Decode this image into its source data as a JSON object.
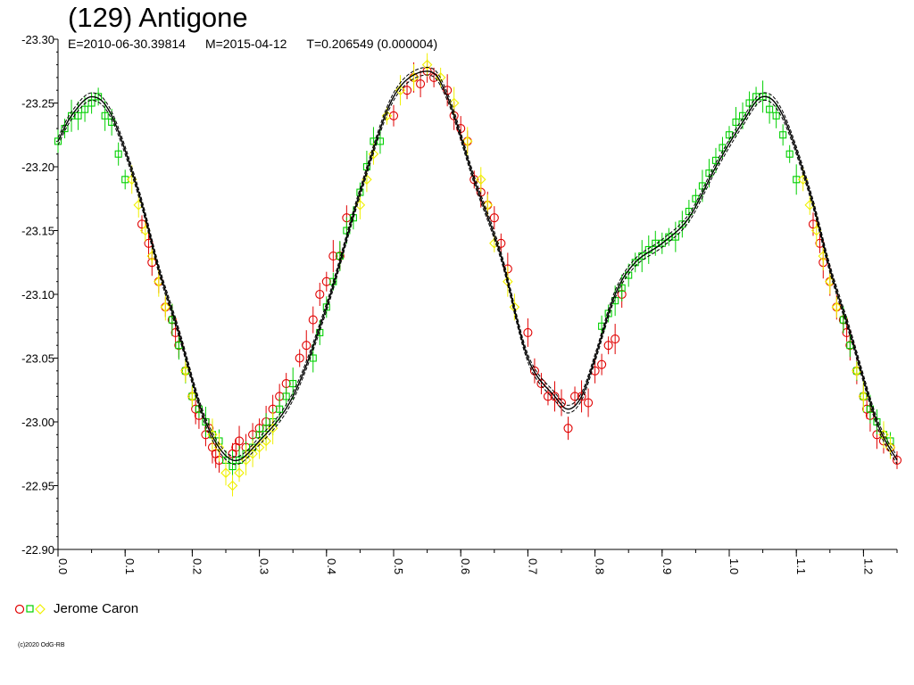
{
  "title": "(129) Antigone",
  "subtitle": {
    "epoch": "E=2010-06-30.39814",
    "date": "M=2015-04-12",
    "period": "T=0.206549 (0.000004)"
  },
  "legend": {
    "label": "Jerome Caron"
  },
  "copyright": "(c)2020 OdG-RB",
  "colors": {
    "red": "#e00000",
    "green": "#00d000",
    "yellow": "#f0f000",
    "curve": "#000000"
  },
  "chart_data": {
    "type": "scatter",
    "xlabel": "",
    "ylabel": "",
    "xlim": [
      0.0,
      1.25
    ],
    "ylim": [
      -22.9,
      -23.3
    ],
    "y_inverted": true,
    "xticks": [
      "0.0",
      "0.1",
      "0.2",
      "0.3",
      "0.4",
      "0.5",
      "0.6",
      "0.7",
      "0.8",
      "0.9",
      "1.0",
      "1.1",
      "1.2"
    ],
    "yticks": [
      "-23.30",
      "-23.25",
      "-23.20",
      "-23.15",
      "-23.10",
      "-23.05",
      "-23.00",
      "-22.95",
      "-22.90"
    ],
    "model_curve": {
      "x": [
        0.0,
        0.02,
        0.05,
        0.08,
        0.12,
        0.15,
        0.18,
        0.22,
        0.26,
        0.3,
        0.35,
        0.4,
        0.45,
        0.5,
        0.55,
        0.58,
        0.62,
        0.66,
        0.7,
        0.74,
        0.76,
        0.78,
        0.8,
        0.83,
        0.86,
        0.9,
        0.94,
        0.98,
        1.02,
        1.05,
        1.08,
        1.12,
        1.15,
        1.18,
        1.22,
        1.25
      ],
      "y": [
        -23.22,
        -23.24,
        -23.255,
        -23.24,
        -23.18,
        -23.12,
        -23.07,
        -23.0,
        -22.97,
        -22.985,
        -23.02,
        -23.09,
        -23.18,
        -23.255,
        -23.275,
        -23.255,
        -23.19,
        -23.13,
        -23.05,
        -23.02,
        -23.01,
        -23.02,
        -23.05,
        -23.1,
        -23.125,
        -23.14,
        -23.16,
        -23.2,
        -23.235,
        -23.255,
        -23.24,
        -23.18,
        -23.12,
        -23.07,
        -23.0,
        -22.97
      ]
    },
    "series": [
      {
        "marker": "circle",
        "color": "red",
        "x": [
          0.125,
          0.135,
          0.14,
          0.15,
          0.16,
          0.17,
          0.175,
          0.18,
          0.19,
          0.2,
          0.205,
          0.21,
          0.22,
          0.225,
          0.23,
          0.235,
          0.24,
          0.26,
          0.265,
          0.27,
          0.28,
          0.29,
          0.3,
          0.31,
          0.32,
          0.33,
          0.34,
          0.36,
          0.37,
          0.38,
          0.39,
          0.4,
          0.41,
          0.42,
          0.43,
          0.5,
          0.52,
          0.53,
          0.54,
          0.55,
          0.56,
          0.58,
          0.59,
          0.6,
          0.61,
          0.62,
          0.63,
          0.64,
          0.65,
          0.66,
          0.67,
          0.7,
          0.71,
          0.72,
          0.73,
          0.74,
          0.75,
          0.76,
          0.77,
          0.78,
          0.79,
          0.8,
          0.81,
          0.82,
          0.83,
          0.84,
          1.125,
          1.135,
          1.14,
          1.15,
          1.16,
          1.17,
          1.175,
          1.18,
          1.19,
          1.2,
          1.205,
          1.21,
          1.22,
          1.23,
          1.24,
          1.25
        ],
        "y": [
          -23.155,
          -23.14,
          -23.125,
          -23.11,
          -23.09,
          -23.08,
          -23.07,
          -23.06,
          -23.04,
          -23.02,
          -23.01,
          -23.005,
          -22.99,
          -22.995,
          -22.98,
          -22.975,
          -22.97,
          -22.975,
          -22.98,
          -22.985,
          -22.98,
          -22.99,
          -22.995,
          -23.0,
          -23.01,
          -23.02,
          -23.03,
          -23.05,
          -23.06,
          -23.08,
          -23.1,
          -23.11,
          -23.13,
          -23.13,
          -23.16,
          -23.24,
          -23.26,
          -23.27,
          -23.265,
          -23.275,
          -23.27,
          -23.26,
          -23.24,
          -23.23,
          -23.22,
          -23.19,
          -23.18,
          -23.17,
          -23.16,
          -23.14,
          -23.12,
          -23.07,
          -23.04,
          -23.03,
          -23.02,
          -23.02,
          -23.015,
          -22.995,
          -23.02,
          -23.02,
          -23.015,
          -23.04,
          -23.045,
          -23.06,
          -23.065,
          -23.1,
          -23.155,
          -23.14,
          -23.125,
          -23.11,
          -23.09,
          -23.08,
          -23.07,
          -23.06,
          -23.04,
          -23.02,
          -23.01,
          -23.005,
          -22.99,
          -22.985,
          -22.98,
          -22.97
        ]
      },
      {
        "marker": "square",
        "color": "green",
        "x": [
          0.0,
          0.01,
          0.02,
          0.03,
          0.04,
          0.05,
          0.06,
          0.07,
          0.08,
          0.09,
          0.1,
          0.17,
          0.18,
          0.19,
          0.2,
          0.21,
          0.22,
          0.23,
          0.24,
          0.25,
          0.26,
          0.27,
          0.28,
          0.29,
          0.3,
          0.31,
          0.32,
          0.33,
          0.34,
          0.35,
          0.38,
          0.39,
          0.4,
          0.41,
          0.42,
          0.43,
          0.44,
          0.45,
          0.46,
          0.47,
          0.48,
          0.81,
          0.82,
          0.83,
          0.84,
          0.85,
          0.86,
          0.87,
          0.88,
          0.89,
          0.9,
          0.91,
          0.92,
          0.93,
          0.94,
          0.95,
          0.96,
          0.97,
          0.98,
          0.99,
          1.0,
          1.01,
          1.02,
          1.03,
          1.04,
          1.05,
          1.06,
          1.07,
          1.08,
          1.09,
          1.1,
          1.17,
          1.18,
          1.19,
          1.2,
          1.21,
          1.22,
          1.23,
          1.24
        ],
        "y": [
          -23.22,
          -23.23,
          -23.24,
          -23.24,
          -23.245,
          -23.25,
          -23.255,
          -23.24,
          -23.235,
          -23.21,
          -23.19,
          -23.08,
          -23.06,
          -23.04,
          -23.02,
          -23.01,
          -23.0,
          -22.99,
          -22.985,
          -22.97,
          -22.965,
          -22.97,
          -22.975,
          -22.98,
          -22.99,
          -22.995,
          -23.0,
          -23.01,
          -23.02,
          -23.03,
          -23.05,
          -23.07,
          -23.09,
          -23.11,
          -23.13,
          -23.15,
          -23.16,
          -23.18,
          -23.2,
          -23.22,
          -23.22,
          -23.075,
          -23.085,
          -23.095,
          -23.105,
          -23.115,
          -23.125,
          -23.13,
          -23.135,
          -23.14,
          -23.14,
          -23.145,
          -23.145,
          -23.155,
          -23.165,
          -23.175,
          -23.185,
          -23.195,
          -23.205,
          -23.215,
          -23.225,
          -23.235,
          -23.24,
          -23.25,
          -23.255,
          -23.255,
          -23.245,
          -23.24,
          -23.225,
          -23.21,
          -23.19,
          -23.08,
          -23.06,
          -23.04,
          -23.02,
          -23.01,
          -23.0,
          -22.99,
          -22.985
        ]
      },
      {
        "marker": "diamond",
        "color": "yellow",
        "x": [
          0.11,
          0.12,
          0.13,
          0.14,
          0.15,
          0.16,
          0.19,
          0.2,
          0.23,
          0.24,
          0.25,
          0.26,
          0.27,
          0.28,
          0.29,
          0.3,
          0.31,
          0.32,
          0.45,
          0.46,
          0.47,
          0.49,
          0.51,
          0.53,
          0.55,
          0.57,
          0.59,
          0.61,
          0.63,
          0.64,
          0.65,
          0.67,
          0.68,
          1.11,
          1.12,
          1.13,
          1.14,
          1.15,
          1.16,
          1.19,
          1.2,
          1.23,
          1.24
        ],
        "y": [
          -23.19,
          -23.17,
          -23.15,
          -23.13,
          -23.11,
          -23.09,
          -23.04,
          -23.02,
          -22.99,
          -22.98,
          -22.96,
          -22.95,
          -22.96,
          -22.97,
          -22.975,
          -22.98,
          -22.985,
          -22.995,
          -23.17,
          -23.19,
          -23.21,
          -23.24,
          -23.26,
          -23.27,
          -23.28,
          -23.27,
          -23.25,
          -23.22,
          -23.19,
          -23.17,
          -23.14,
          -23.11,
          -23.09,
          -23.19,
          -23.17,
          -23.15,
          -23.13,
          -23.11,
          -23.09,
          -23.04,
          -23.02,
          -22.99,
          -22.98
        ]
      }
    ]
  }
}
